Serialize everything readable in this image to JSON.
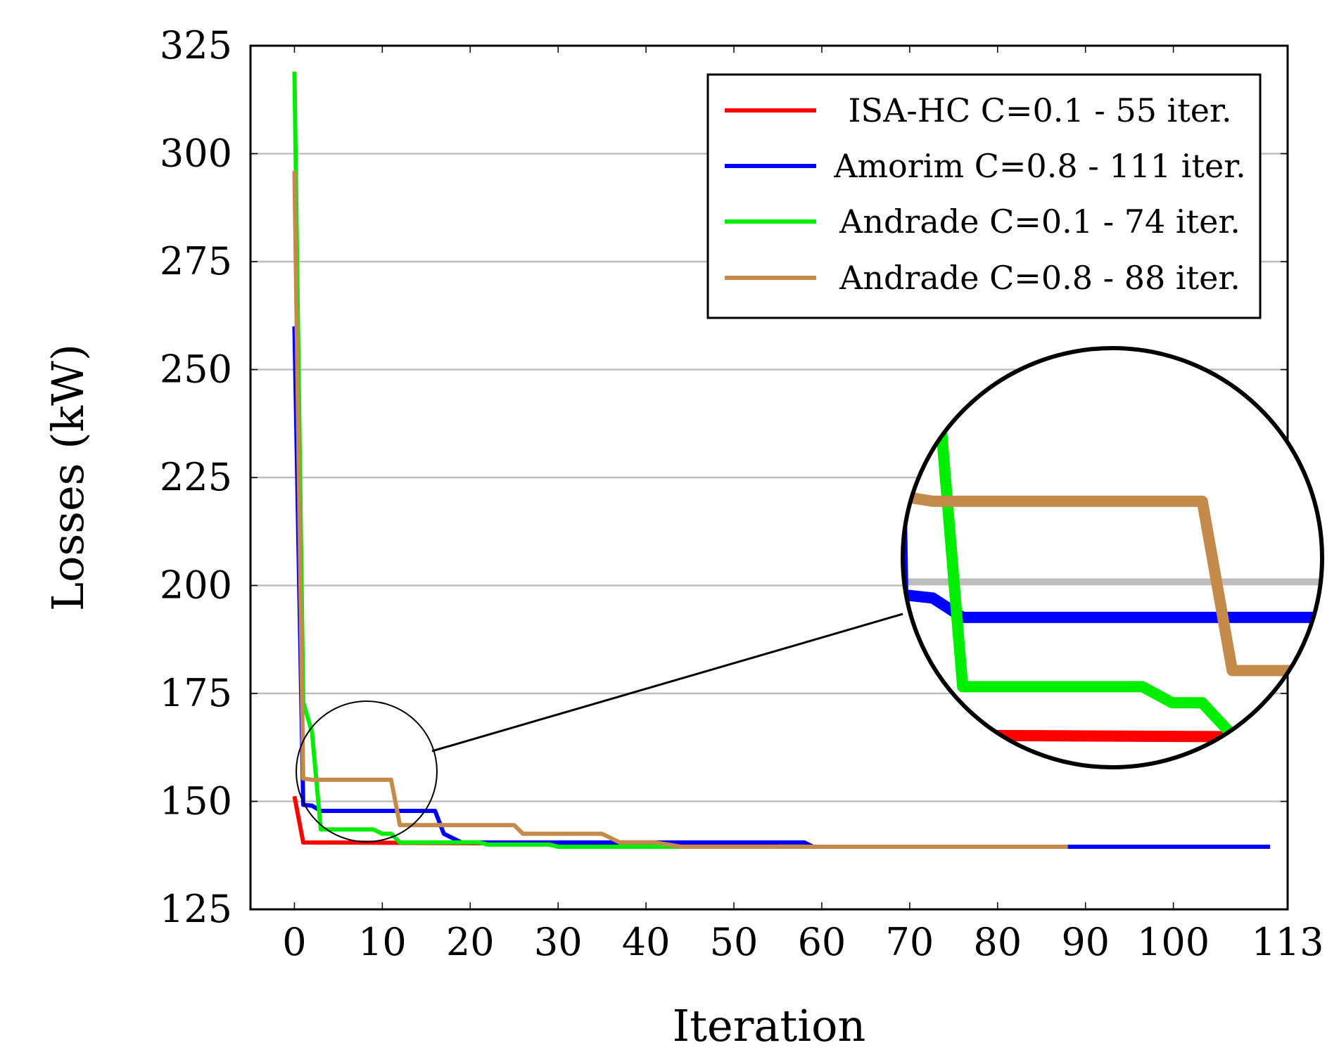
{
  "chart_data": {
    "type": "line",
    "title": "",
    "xlabel": "Iteration",
    "ylabel": "Losses (kW)",
    "xlim": [
      -5,
      113
    ],
    "ylim": [
      125,
      325
    ],
    "x_ticks": [
      0,
      10,
      20,
      30,
      40,
      50,
      60,
      70,
      80,
      90,
      100,
      113
    ],
    "y_ticks": [
      125,
      150,
      175,
      200,
      225,
      250,
      275,
      300,
      325
    ],
    "grid": "horizontal",
    "legend_position": "top-right",
    "series": [
      {
        "name": "ISA-HC C=0.1 - 55 iter.",
        "color": "#ff0000",
        "x": [
          0,
          1,
          55
        ],
        "y": [
          151.2,
          140.5,
          140.0
        ]
      },
      {
        "name": "Amorim C=0.8 - 111 iter.",
        "color": "#0000ff",
        "x": [
          0,
          1,
          2,
          3,
          16,
          17,
          19,
          58,
          59,
          111
        ],
        "y": [
          260,
          149.2,
          149.0,
          147.8,
          147.8,
          142.5,
          140.5,
          140.5,
          139.5,
          139.5
        ]
      },
      {
        "name": "Andrade C=0.1 - 74 iter.",
        "color": "#00ee00",
        "x": [
          0,
          1,
          2,
          3,
          9,
          10,
          11,
          12,
          21,
          22,
          29,
          30,
          74
        ],
        "y": [
          319,
          173,
          166,
          143.5,
          143.5,
          142.5,
          142.5,
          140.5,
          140.5,
          140.0,
          140.0,
          139.5,
          139.5
        ]
      },
      {
        "name": "Andrade C=0.8 - 88 iter.",
        "color": "#c48a4a",
        "x": [
          0,
          1,
          2,
          11,
          12,
          25,
          26,
          35,
          37,
          41,
          44,
          88
        ],
        "y": [
          296,
          155.3,
          155.0,
          155.0,
          144.5,
          144.5,
          142.5,
          142.5,
          140.5,
          140.5,
          139.5,
          139.5
        ]
      }
    ],
    "zoom_inset": {
      "x_range": [
        1,
        15
      ],
      "y_range": [
        138.5,
        164.5
      ]
    }
  }
}
